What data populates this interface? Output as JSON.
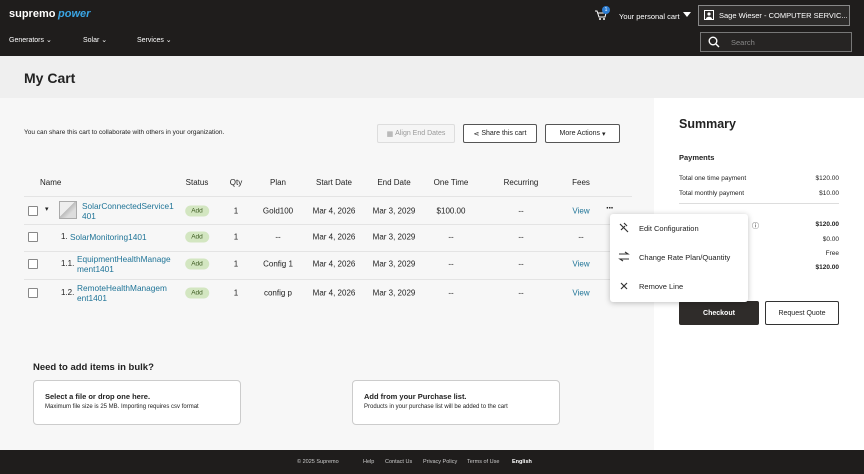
{
  "header": {
    "logo": "supremo",
    "logo_accent": "power",
    "cart_count": "1",
    "cart_label": "Your personal cart",
    "user": "Sage Wieser - COMPUTER SERVIC...",
    "nav": [
      "Generators",
      "Solar",
      "Services"
    ],
    "search_placeholder": "Search"
  },
  "page_title": "My Cart",
  "cart": {
    "share_note": "You can share this cart to collaborate with others in your organization.",
    "buttons": [
      "Align End Dates",
      "Share this cart",
      "More Actions"
    ],
    "table": {
      "columns": [
        "Name",
        "Status",
        "Qty",
        "Plan",
        "Start Date",
        "End Date",
        "One Time",
        "Recurring",
        "Fees"
      ],
      "rows": [
        {
          "name": "SolarConnectedService1401",
          "status": "Add",
          "qty": 1,
          "plan": "Gold100",
          "start": "Mar 4, 2026",
          "end": "Mar 3, 2029",
          "one_time": "$100.00",
          "recurring": "--",
          "fees": "View"
        },
        {
          "number": "1.",
          "name": "SolarMonitoring1401",
          "status": "Add",
          "qty": 1,
          "plan": "--",
          "start": "Mar 4, 2026",
          "end": "Mar 3, 2029",
          "one_time": "--",
          "recurring": "--",
          "fees": "--"
        },
        {
          "number": "1.1.",
          "name": "EquipmentHealthManagement1401",
          "status": "Add",
          "qty": 1,
          "plan": "Config 1",
          "start": "Mar 4, 2026",
          "end": "Mar 3, 2029",
          "one_time": "--",
          "recurring": "--",
          "fees": "View"
        },
        {
          "number": "1.2.",
          "name": "RemoteHealthManagement1401",
          "status": "Add",
          "qty": 1,
          "plan": "config p",
          "start": "Mar 4, 2026",
          "end": "Mar 3, 2029",
          "one_time": "--",
          "recurring": "--",
          "fees": "View"
        }
      ]
    },
    "row_menu": [
      "Edit Configuration",
      "Change Rate Plan/Quantity",
      "Remove Line"
    ]
  },
  "summary": {
    "title": "Summary",
    "payments_heading": "Payments",
    "payments": [
      {
        "label": "Total one time payment",
        "value": "$120.00"
      },
      {
        "label": "Total monthly payment",
        "value": "$10.00"
      }
    ],
    "totals": [
      "$120.00",
      "$0.00",
      "Free",
      "$120.00"
    ],
    "checkout": "Checkout",
    "request_quote": "Request Quote"
  },
  "bulk": {
    "title": "Need to add items in bulk?",
    "upload": {
      "title": "Select a file or drop one here.",
      "note": "Maximum file size is 25 MB. Importing requires csv format"
    },
    "purchase_list": {
      "title": "Add from your Purchase list.",
      "note": "Products in your purchase list will be added to the cart"
    }
  },
  "footer": {
    "copyright": "© 2025 Supremo",
    "links": [
      "Help",
      "Contact Us",
      "Privacy Policy",
      "Terms of Use",
      "English"
    ]
  }
}
